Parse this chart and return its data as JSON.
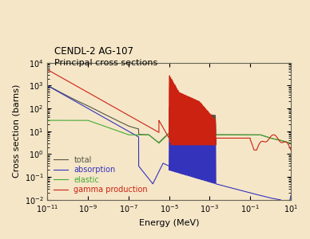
{
  "title_line1": "CENDL-2 AG-107",
  "title_line2": "Principal cross sections",
  "xlabel": "Energy (MeV)",
  "ylabel": "Cross section (barns)",
  "bg_color": "#f5e6c8",
  "plot_bg_color": "#f5e6c8",
  "xlim_log": [
    -11,
    1
  ],
  "ylim_log": [
    -2,
    4
  ],
  "colors": {
    "total": "#555544",
    "absorption": "#3333bb",
    "elastic": "#44aa33",
    "gamma": "#cc2211"
  },
  "legend_labels": [
    "total",
    "absorption",
    "elastic",
    "gamma production"
  ]
}
